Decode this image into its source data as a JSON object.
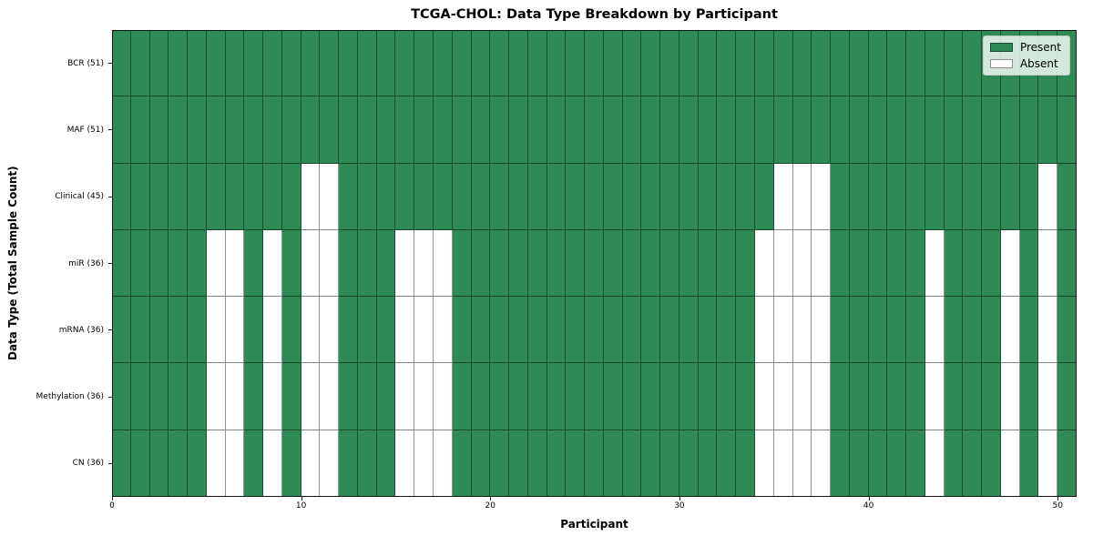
{
  "figure": {
    "title": "TCGA-CHOL: Data Type Breakdown by Participant",
    "xlabel": "Participant",
    "ylabel": "Data Type (Total Sample Count)"
  },
  "legend": {
    "items": [
      {
        "label": "Present",
        "color": "#2e8b57"
      },
      {
        "label": "Absent",
        "color": "#ffffff"
      }
    ]
  },
  "chart_data": {
    "type": "heatmap",
    "title": "TCGA-CHOL: Data Type Breakdown by Participant",
    "xlabel": "Participant",
    "ylabel": "Data Type (Total Sample Count)",
    "legend_entries": [
      "Present",
      "Absent"
    ],
    "legend_position": "upper right",
    "grid": "cell-edges-only",
    "colors": {
      "present": "#2e8b57",
      "absent": "#ffffff"
    },
    "n_participants": 51,
    "x_axis": {
      "range": [
        0,
        51
      ],
      "ticks": [
        0,
        10,
        20,
        30,
        40,
        50
      ]
    },
    "rows": [
      {
        "label": "BCR (51)",
        "data_type": "BCR",
        "total_samples": 51,
        "absent_participants": []
      },
      {
        "label": "MAF (51)",
        "data_type": "MAF",
        "total_samples": 51,
        "absent_participants": []
      },
      {
        "label": "Clinical (45)",
        "data_type": "Clinical",
        "total_samples": 45,
        "absent_participants": [
          10,
          11,
          35,
          36,
          37,
          49
        ]
      },
      {
        "label": "miR (36)",
        "data_type": "miR",
        "total_samples": 36,
        "absent_participants": [
          5,
          6,
          8,
          10,
          11,
          15,
          16,
          17,
          34,
          35,
          36,
          37,
          43,
          47,
          49
        ]
      },
      {
        "label": "mRNA (36)",
        "data_type": "mRNA",
        "total_samples": 36,
        "absent_participants": [
          5,
          6,
          8,
          10,
          11,
          15,
          16,
          17,
          34,
          35,
          36,
          37,
          43,
          47,
          49
        ]
      },
      {
        "label": "Methylation (36)",
        "data_type": "Methylation",
        "total_samples": 36,
        "absent_participants": [
          5,
          6,
          8,
          10,
          11,
          15,
          16,
          17,
          34,
          35,
          36,
          37,
          43,
          47,
          49
        ]
      },
      {
        "label": "CN (36)",
        "data_type": "CN",
        "total_samples": 36,
        "absent_participants": [
          5,
          6,
          8,
          10,
          11,
          15,
          16,
          17,
          34,
          35,
          36,
          37,
          43,
          47,
          49
        ]
      }
    ]
  }
}
